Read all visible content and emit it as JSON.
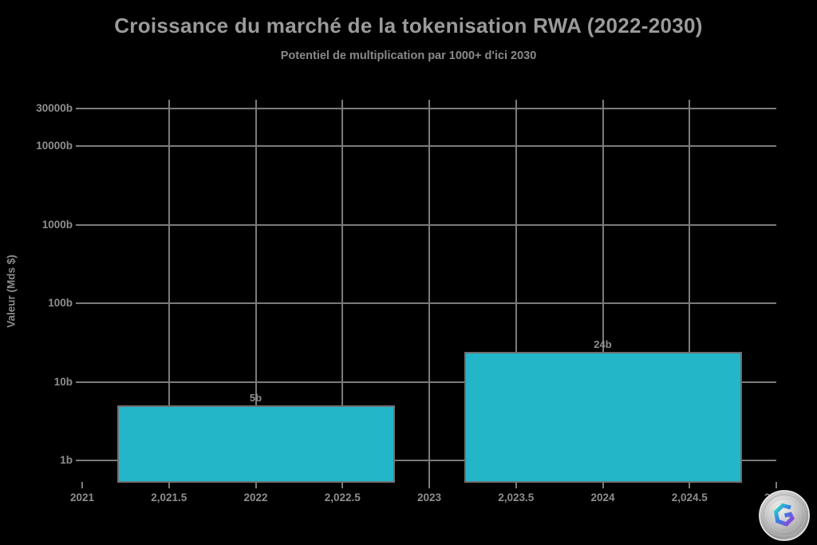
{
  "chart_data": {
    "type": "bar",
    "title": "Croissance du marché de la tokenisation RWA (2022-2030)",
    "subtitle": "Potentiel de multiplication par 1000+ d'ici 2030",
    "xlabel": "",
    "ylabel": "Valeur (Mds $)",
    "y_scale": "log",
    "x_range": [
      2021,
      2025
    ],
    "categories": [
      2022,
      2024
    ],
    "values": [
      5,
      24
    ],
    "value_labels": [
      "5b",
      "24b"
    ],
    "bar_width_years": 1.6,
    "x_ticks": [
      2021,
      2021.5,
      2022,
      2022.5,
      2023,
      2023.5,
      2024,
      2024.5,
      2025
    ],
    "x_tick_labels": [
      "2021",
      "2,021.5",
      "2022",
      "2,022.5",
      "2023",
      "2,023.5",
      "2024",
      "2,024.5",
      "2025"
    ],
    "y_ticks": [
      1,
      10,
      100,
      1000,
      10000,
      30000
    ],
    "y_tick_labels": [
      "1b",
      "10b",
      "100b",
      "1000b",
      "10000b",
      "30000b"
    ],
    "grid": true,
    "legend": false,
    "colors": {
      "background": "#000000",
      "bar_fill": "#23b6c9",
      "bar_stroke": "#6f6f6f",
      "grid": "#7b7b7b",
      "tick_text": "#8e8e8e",
      "title_text": "#9b9b9b",
      "subtitle_text": "#8a8a8a"
    }
  },
  "watermark": {
    "icon": "coin-logo"
  }
}
